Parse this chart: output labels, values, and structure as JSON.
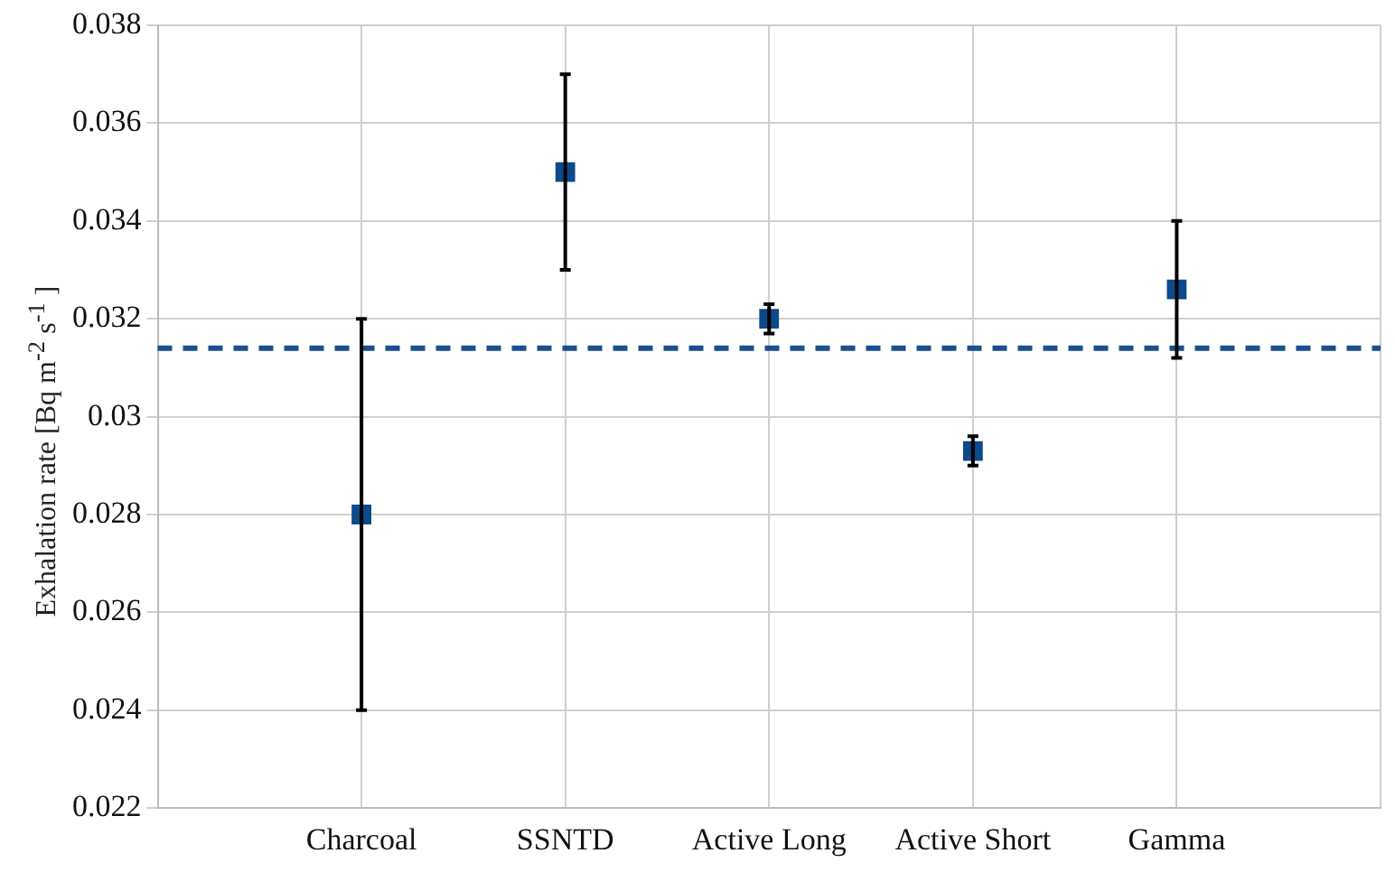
{
  "chart_data": {
    "type": "scatter",
    "ylabel": "Exhalation rate [Bq m$^{-2}$ s$^{-1}$ ]",
    "categories": [
      null,
      "Charcoal",
      "SSNTD",
      "Active Long",
      "Active Short",
      "Gamma",
      null
    ],
    "values": [
      null,
      0.028,
      0.035,
      0.032,
      0.0293,
      0.0326,
      null
    ],
    "errors": [
      null,
      0.004,
      0.002,
      0.0003,
      0.0003,
      [
        0.0312,
        0.034
      ],
      null
    ],
    "color": "#0d4a8a",
    "marker": "square",
    "ylim": [
      0.022,
      0.038
    ],
    "yticks": [
      0.022,
      0.024,
      0.026,
      0.028,
      0.03,
      0.032,
      0.034,
      0.036,
      0.038
    ],
    "ref_lines": [
      {
        "axis": "y",
        "value": 0.0314,
        "color": "#1b4f8f",
        "line_style": "dashed"
      }
    ],
    "grid": true,
    "legend": false
  }
}
